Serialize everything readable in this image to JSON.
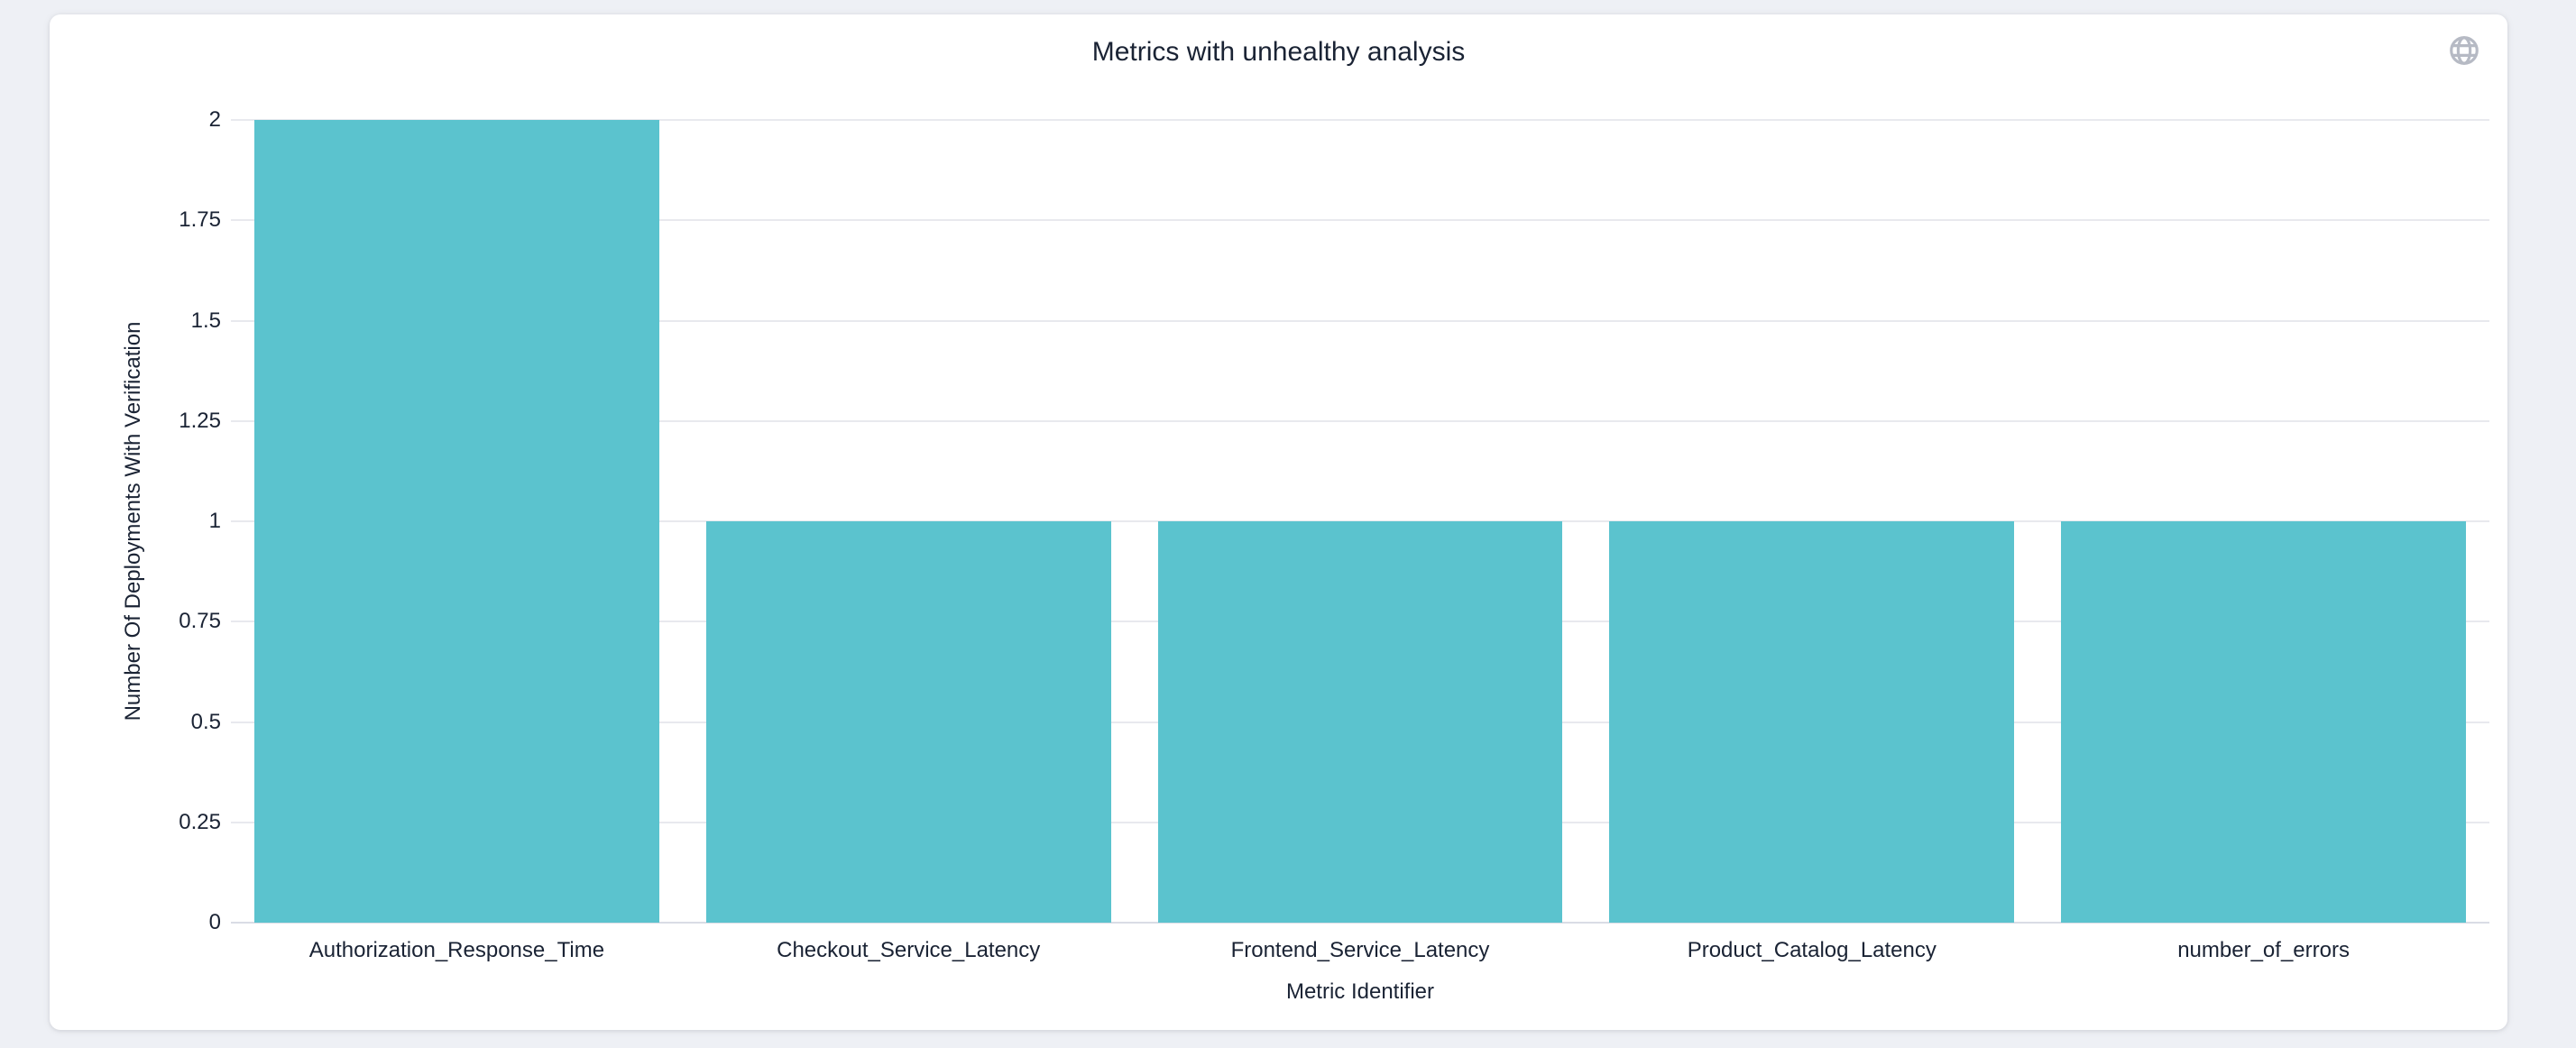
{
  "card": {
    "title": "Metrics with unhealthy analysis"
  },
  "icons": {
    "globe": "globe-icon"
  },
  "colors": {
    "page_background": "#eef0f5",
    "card_background": "#ffffff",
    "bar": "#5bc3ce",
    "text": "#1a2334",
    "gridline": "#e8e9ee",
    "baseline": "#d9dce5",
    "globe_icon": "#b6bac4"
  },
  "chart_data": {
    "type": "bar",
    "title": "Metrics with unhealthy analysis",
    "categories": [
      "Authorization_Response_Time",
      "Checkout_Service_Latency",
      "Frontend_Service_Latency",
      "Product_Catalog_Latency",
      "number_of_errors"
    ],
    "values": [
      2,
      1,
      1,
      1,
      1
    ],
    "xlabel": "Metric Identifier",
    "ylabel": "Number Of Deployments With Verification",
    "ylim": [
      0,
      2
    ],
    "ytick_labels": [
      "0",
      "0.25",
      "0.5",
      "0.75",
      "1",
      "1.25",
      "1.5",
      "1.75",
      "2"
    ],
    "grid": true,
    "legend": false,
    "bar_color": "#5bc3ce"
  }
}
